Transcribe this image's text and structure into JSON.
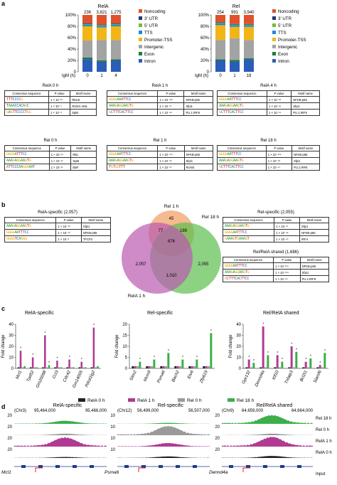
{
  "panel_labels": {
    "a": "a",
    "b": "b",
    "c": "c",
    "d": "d"
  },
  "colors": {
    "noncoding": "#e0522c",
    "utr3": "#1f3b73",
    "utr5": "#6fbf3a",
    "tts": "#1a8fd1",
    "promoter": "#f2b517",
    "intergenic": "#a3a3a3",
    "exon": "#1e7b3c",
    "intron": "#2a5db8",
    "rela": "#b13a93",
    "rel": "#3cae4a",
    "rela0": "#222222",
    "rel0": "#9a9a9a"
  },
  "genomic_legend": [
    "Noncoding",
    "3′ UTR",
    "5′ UTR",
    "TTS",
    "Promoter-TSS",
    "Intergenic",
    "Exon",
    "Intron"
  ],
  "chart_data": [
    {
      "type": "bar",
      "title": "RelA",
      "stacked": true,
      "categories": [
        "0",
        "1",
        "4"
      ],
      "top_labels": [
        "236",
        "3,821",
        "1,275"
      ],
      "xlabel": "IgM (h)",
      "yticks": [
        "0",
        "20%",
        "40%",
        "60%",
        "80%",
        "100%"
      ],
      "ylim": [
        0,
        100
      ],
      "series": [
        {
          "name": "Intron",
          "values": [
            22,
            18,
            20
          ]
        },
        {
          "name": "Exon",
          "values": [
            3,
            2,
            2
          ]
        },
        {
          "name": "Intergenic",
          "values": [
            30,
            36,
            34
          ]
        },
        {
          "name": "Promoter-TSS",
          "values": [
            25,
            22,
            24
          ]
        },
        {
          "name": "TTS",
          "values": [
            3,
            3,
            3
          ]
        },
        {
          "name": "5′ UTR",
          "values": [
            1,
            1,
            1
          ]
        },
        {
          "name": "3′ UTR",
          "values": [
            1,
            1,
            1
          ]
        },
        {
          "name": "Noncoding",
          "values": [
            15,
            17,
            15
          ]
        }
      ]
    },
    {
      "type": "bar",
      "title": "Rel",
      "stacked": true,
      "categories": [
        "0",
        "1",
        "18"
      ],
      "top_labels": [
        "254",
        "991",
        "3,940"
      ],
      "xlabel": "IgM (h)",
      "yticks": [
        "0",
        "20%",
        "40%",
        "60%",
        "80%",
        "100%"
      ],
      "ylim": [
        0,
        100
      ],
      "series": [
        {
          "name": "Intron",
          "values": [
            20,
            18,
            22
          ]
        },
        {
          "name": "Exon",
          "values": [
            2,
            3,
            2
          ]
        },
        {
          "name": "Intergenic",
          "values": [
            34,
            38,
            32
          ]
        },
        {
          "name": "Promoter-TSS",
          "values": [
            26,
            20,
            23
          ]
        },
        {
          "name": "TTS",
          "values": [
            3,
            3,
            3
          ]
        },
        {
          "name": "5′ UTR",
          "values": [
            1,
            1,
            1
          ]
        },
        {
          "name": "3′ UTR",
          "values": [
            1,
            1,
            1
          ]
        },
        {
          "name": "Noncoding",
          "values": [
            13,
            16,
            16
          ]
        }
      ]
    },
    {
      "type": "bar",
      "title": "RelA-specific",
      "ylabel": "Fold change",
      "yticks": [
        "0",
        "10",
        "20",
        "30",
        "40"
      ],
      "ylim": [
        0,
        40
      ],
      "categories": [
        "Mcl1",
        "Tpd52",
        "Gm20098",
        "Ccl3",
        "Cdc42",
        "Gm14005",
        "Pdcd1lg2"
      ],
      "series": [
        {
          "name": "RelA 0 h",
          "values": [
            1,
            1,
            1,
            1,
            1,
            1,
            1
          ]
        },
        {
          "name": "RelA 1 h",
          "values": [
            16,
            10,
            30,
            7,
            8,
            6,
            37
          ]
        },
        {
          "name": "Rel 0 h",
          "values": [
            1,
            1,
            1,
            1,
            1,
            1,
            1
          ]
        },
        {
          "name": "Rel 18 h",
          "values": [
            2,
            1,
            3,
            1,
            1,
            1,
            2
          ]
        }
      ]
    },
    {
      "type": "bar",
      "title": "Rel-specific",
      "ylabel": "Fold change",
      "yticks": [
        "0",
        "5",
        "10",
        "15",
        "20"
      ],
      "ylim": [
        0,
        20
      ],
      "categories": [
        "Slim2",
        "Mcm9",
        "Psma6",
        "Bach2",
        "Etv6",
        "Zfp619"
      ],
      "series": [
        {
          "name": "RelA 0 h",
          "values": [
            1,
            1,
            1,
            1,
            1,
            1
          ]
        },
        {
          "name": "RelA 1 h",
          "values": [
            1,
            1,
            1,
            1,
            1,
            1
          ]
        },
        {
          "name": "Rel 0 h",
          "values": [
            1,
            1,
            1,
            1,
            1,
            1
          ]
        },
        {
          "name": "Rel 18 h",
          "values": [
            3,
            4,
            7,
            4,
            4,
            16
          ]
        }
      ]
    },
    {
      "type": "bar",
      "title": "Rel/RelA shared",
      "ylabel": "Fold change",
      "yticks": [
        "0",
        "10",
        "20",
        "30",
        "40"
      ],
      "ylim": [
        0,
        40
      ],
      "categories": [
        "Gpr132",
        "Dennd4a",
        "Klf10",
        "Tnfaip3",
        "Bcl2l1",
        "Slamf6"
      ],
      "series": [
        {
          "name": "RelA 0 h",
          "values": [
            1,
            1,
            1,
            1,
            1,
            1
          ]
        },
        {
          "name": "RelA 1 h",
          "values": [
            8,
            38,
            12,
            20,
            6,
            3
          ]
        },
        {
          "name": "Rel 0 h",
          "values": [
            1,
            1,
            1,
            1,
            1,
            1
          ]
        },
        {
          "name": "Rel 18 h",
          "values": [
            5,
            12,
            6,
            15,
            9,
            14
          ]
        }
      ]
    }
  ],
  "motif_headers": [
    "Consensus sequence",
    "P value",
    "Motif name"
  ],
  "motif_tables": [
    {
      "title": "RelA 0 h",
      "rows": [
        {
          "seq": "TTTCCCCG",
          "p": "1 × 10⁻¹⁰",
          "name": "RELB"
        },
        {
          "seq": "TAAACCACAGC",
          "p": "1 × 10⁻⁹",
          "name": "RUNX-AML"
        },
        {
          "seq": "GAGTTCCCCTGG",
          "p": "1 × 10⁻⁸",
          "name": "SpiB"
        }
      ]
    },
    {
      "title": "RelA 1 h",
      "rows": [
        {
          "seq": "GGGGAAATTCC",
          "p": "1 × 10⁻¹¹⁸",
          "name": "NFKB-p65"
        },
        {
          "seq": "AAAGAGGAAGTG",
          "p": "1 × 10⁻⁹⁷",
          "name": "Sfpi1"
        },
        {
          "seq": "GCTTTCACTTCC",
          "p": "1 × 10⁻⁴⁵",
          "name": "PU.1:IRF8"
        }
      ]
    },
    {
      "title": "RelA 4 h",
      "rows": [
        {
          "seq": "GGGGAATTTCC",
          "p": "1 × 10⁻²⁸",
          "name": "NFKB-p65"
        },
        {
          "seq": "AAAGAGGAAGTG",
          "p": "1 × 10⁻²⁴",
          "name": "Sfpi1"
        },
        {
          "seq": "GCTTTCACTTCC",
          "p": "1 × 10⁻¹⁴",
          "name": "PU.1:IRF8"
        }
      ]
    },
    {
      "title": "Rel 0 h",
      "rows": [
        {
          "seq": "GGGGATTTCC",
          "p": "1 × 10⁻¹⁴",
          "name": "REL"
        },
        {
          "seq": "AAAGAGGAAGTG",
          "p": "1 × 10⁻¹²",
          "name": "SpiB"
        },
        {
          "seq": "ATTCCCAAGGGAAT",
          "p": "1 × 10⁻¹¹",
          "name": "EBF"
        }
      ]
    },
    {
      "title": "Rel 1 h",
      "rows": [
        {
          "seq": "GGGGAATTTCC",
          "p": "1 × 10⁻¹⁷⁴",
          "name": "NFKB-p65"
        },
        {
          "seq": "AAAGAGGAAGTG",
          "p": "1 × 10⁻⁹⁵",
          "name": "Sfpi1"
        },
        {
          "seq": "TGTGGTTT",
          "p": "1 × 10⁻¹⁹",
          "name": "RUNX"
        }
      ]
    },
    {
      "title": "Rel 18 h",
      "rows": [
        {
          "seq": "GGGGAATTTCC",
          "p": "1 × 10⁻¹⁶⁴",
          "name": "NFKB-p65"
        },
        {
          "seq": "AAAGAGGAAGTG",
          "p": "1 × 10⁻⁹⁸",
          "name": "Sfpi1"
        },
        {
          "seq": "GCTTTCACTTCC",
          "p": "1 × 10⁻⁴⁷",
          "name": "PU.1:IRF8"
        }
      ]
    },
    {
      "title": "RelA-specific (2,057)",
      "rows": [
        {
          "seq": "AAAGAGGAAGTG",
          "p": "1 × 10⁻¹⁶",
          "name": "Sfpi1"
        },
        {
          "seq": "GGGGAATTTCC",
          "p": "1 × 10⁻¹⁰",
          "name": "NFKB-p65"
        },
        {
          "seq": "GGGGTCAGGG",
          "p": "1 × 10⁻⁸",
          "name": "TFCP2"
        }
      ]
    },
    {
      "title": "Rel-specific (2,055)",
      "rows": [
        {
          "seq": "AAAGAGGAAGTG",
          "p": "1 × 10⁻⁵⁷",
          "name": "Sfpi1"
        },
        {
          "seq": "GGGGAATTTCC",
          "p": "1 × 10⁻⁴⁵",
          "name": "NFKB-p65"
        },
        {
          "seq": "GAAAGTGAAAGT",
          "p": "1 × 10⁻⁴⁰",
          "name": "IRF4"
        }
      ]
    },
    {
      "title": "Rel/RelA shared (1,686)",
      "rows": [
        {
          "seq": "GGGGAATTTCC",
          "p": "1 × 10⁻¹⁵⁴",
          "name": "NFKB-p65"
        },
        {
          "seq": "AAAGAGGAAGTG",
          "p": "1 × 10⁻¹⁰⁴",
          "name": "Sfpi1"
        },
        {
          "seq": "GCTTTCACTTCC",
          "p": "1 × 10⁻⁶⁴",
          "name": "PU.1:IRF8"
        }
      ]
    }
  ],
  "venn": {
    "rel1h": "Rel 1 h",
    "rel18h": "Rel 18 h",
    "rela1h": "RelA 1 h",
    "values": {
      "a": "45",
      "b": "77",
      "c": "189",
      "d": "676",
      "e": "2,057",
      "f": "2,055",
      "g": "1,010"
    }
  },
  "legend_c": [
    "RelA 0 h",
    "RelA 1 h",
    "Rel 0 h",
    "Rel 18 h"
  ],
  "tracks": {
    "titles": [
      "RelA-specific",
      "Rel-specific",
      "Rel/RelA shared"
    ],
    "loci": [
      {
        "chr": "(Chr3)",
        "start": "95,464,000",
        "end": "95,466,000",
        "gene": "Mcl1"
      },
      {
        "chr": "(Chr12)",
        "start": "56,499,000",
        "end": "56,507,000",
        "gene": "Psma6"
      },
      {
        "chr": "(Chr9)",
        "start": "64,659,000",
        "end": "64,664,000",
        "gene": "Dennd4a"
      }
    ],
    "scales": [
      [
        "20",
        "20",
        "20",
        "20"
      ],
      [
        "10",
        "10",
        "10",
        "10"
      ],
      [
        "20",
        "20",
        "20",
        "20"
      ]
    ],
    "labels": [
      "Rel 18 h",
      "Rel 0 h",
      "RelA 1 h",
      "RelA 0 h",
      "Input"
    ]
  }
}
